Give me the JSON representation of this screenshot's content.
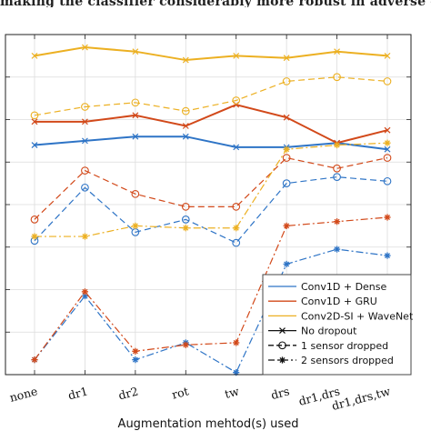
{
  "page": {
    "caption_fragment": "making the classifier considerably more robust in adverse c"
  },
  "chart_data": {
    "type": "line",
    "categories": [
      "none",
      "dr1",
      "dr2",
      "rot",
      "tw",
      "drs",
      "dr1,drs",
      "dr1,drs,tw"
    ],
    "xlabel": "Augmentation mehtod(s) used",
    "ylabel": "",
    "ylim": [
      0,
      8
    ],
    "grid": true,
    "legend_position": "bottom-right",
    "colors": {
      "Conv1D + Dense": "#2e74c6",
      "Conv1D + GRU": "#d2491a",
      "Conv2D-SI + WaveNet": "#ecb022",
      "neutral": "#111111"
    },
    "series": [
      {
        "model": "Conv1D + Dense",
        "dropout": "No dropout",
        "values": [
          5.4,
          5.5,
          5.6,
          5.6,
          5.35,
          5.35,
          5.45,
          5.3
        ]
      },
      {
        "model": "Conv1D + GRU",
        "dropout": "No dropout",
        "values": [
          5.95,
          5.95,
          6.1,
          5.85,
          6.35,
          6.05,
          5.45,
          5.75
        ]
      },
      {
        "model": "Conv2D-SI + WaveNet",
        "dropout": "No dropout",
        "values": [
          7.5,
          7.7,
          7.6,
          7.4,
          7.5,
          7.45,
          7.6,
          7.5
        ]
      },
      {
        "model": "Conv1D + Dense",
        "dropout": "1 sensor dropped",
        "values": [
          3.15,
          4.4,
          3.35,
          3.65,
          3.1,
          4.5,
          4.65,
          4.55
        ]
      },
      {
        "model": "Conv1D + GRU",
        "dropout": "1 sensor dropped",
        "values": [
          3.65,
          4.8,
          4.25,
          3.95,
          3.95,
          5.1,
          4.85,
          5.1
        ]
      },
      {
        "model": "Conv2D-SI + WaveNet",
        "dropout": "1 sensor dropped",
        "values": [
          6.1,
          6.3,
          6.4,
          6.2,
          6.45,
          6.9,
          7.0,
          6.9
        ]
      },
      {
        "model": "Conv1D + Dense",
        "dropout": "2 sensors dropped",
        "values": [
          0.35,
          1.85,
          0.35,
          0.75,
          0.05,
          2.6,
          2.95,
          2.8
        ]
      },
      {
        "model": "Conv1D + GRU",
        "dropout": "2 sensors dropped",
        "values": [
          0.35,
          1.95,
          0.55,
          0.7,
          0.75,
          3.5,
          3.6,
          3.7
        ]
      },
      {
        "model": "Conv2D-SI + WaveNet",
        "dropout": "2 sensors dropped",
        "values": [
          3.25,
          3.25,
          3.5,
          3.45,
          3.45,
          5.3,
          5.4,
          5.45
        ]
      }
    ],
    "legend": [
      {
        "label": "Conv1D + Dense",
        "kind": "color",
        "color": "#2e74c6"
      },
      {
        "label": "Conv1D + GRU",
        "kind": "color",
        "color": "#d2491a"
      },
      {
        "label": "Conv2D-SI + WaveNet",
        "kind": "color",
        "color": "#ecb022"
      },
      {
        "label": "No dropout",
        "kind": "marker",
        "marker": "x",
        "dash": "solid"
      },
      {
        "label": "1 sensor dropped",
        "kind": "marker",
        "marker": "o",
        "dash": "dashed"
      },
      {
        "label": "2 sensors dropped",
        "kind": "marker",
        "marker": "*",
        "dash": "dashdot"
      }
    ]
  }
}
